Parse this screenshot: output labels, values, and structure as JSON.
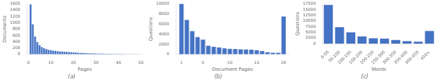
{
  "chart_data": [
    {
      "type": "bar",
      "title": "(a)",
      "xlabel": "Pages",
      "ylabel": "Documents",
      "x": [
        1,
        2,
        3,
        4,
        5,
        6,
        7,
        8,
        9,
        10,
        11,
        12,
        13,
        14,
        15,
        16,
        17,
        18,
        19,
        20,
        21,
        22,
        23,
        24,
        25,
        26,
        27,
        28,
        29,
        30,
        31,
        32,
        33,
        34,
        35,
        36,
        37,
        38,
        39,
        40,
        41,
        42,
        43,
        44,
        45,
        46,
        47,
        48,
        49,
        50
      ],
      "values": [
        1580,
        950,
        560,
        390,
        290,
        230,
        190,
        165,
        140,
        130,
        115,
        110,
        100,
        90,
        85,
        80,
        75,
        70,
        65,
        60,
        55,
        50,
        45,
        42,
        38,
        35,
        32,
        30,
        28,
        26,
        24,
        22,
        20,
        18,
        16,
        15,
        14,
        13,
        12,
        11,
        10,
        9,
        8,
        7,
        6,
        5,
        4,
        4,
        3,
        3
      ],
      "color": "#4472c4",
      "xlim": [
        -0.5,
        50.5
      ],
      "xticks": [
        0,
        10,
        20,
        30,
        40,
        50
      ],
      "ylim": [
        0,
        1600
      ],
      "yticks": [
        0,
        200,
        400,
        600,
        800,
        1000,
        1200,
        1400,
        1600
      ],
      "grid": false
    },
    {
      "type": "bar",
      "title": "(b)",
      "xlabel": "Document Pages",
      "ylabel": "Questions",
      "x": [
        1,
        2,
        3,
        4,
        5,
        6,
        7,
        8,
        9,
        10,
        11,
        12,
        13,
        14,
        15,
        16,
        17,
        18,
        19,
        20
      ],
      "values": [
        10000,
        6800,
        4600,
        3400,
        2900,
        1700,
        1500,
        1350,
        1200,
        1100,
        1050,
        1000,
        950,
        900,
        800,
        650,
        400,
        300,
        300,
        7500
      ],
      "color": "#4472c4",
      "xlim": [
        0,
        21
      ],
      "xticks": [
        1,
        5,
        10,
        15,
        20
      ],
      "ylim": [
        0,
        10000
      ],
      "yticks": [
        0,
        2000,
        4000,
        6000,
        8000,
        10000
      ],
      "grid": false
    },
    {
      "type": "bar",
      "title": "(c)",
      "xlabel": "Words",
      "ylabel": "Questions",
      "categories": [
        "0-50",
        "50-100",
        "100-150",
        "150-200",
        "200-250",
        "250-300",
        "300-350",
        "350-400",
        "400-450",
        "450+"
      ],
      "values": [
        17000,
        7200,
        5000,
        3200,
        2400,
        2200,
        1600,
        1100,
        900,
        5600
      ],
      "color": "#4472c4",
      "ylim": [
        0,
        17500
      ],
      "yticks": [
        0,
        2500,
        5000,
        7500,
        10000,
        12500,
        15000,
        17500
      ],
      "grid": false
    }
  ]
}
